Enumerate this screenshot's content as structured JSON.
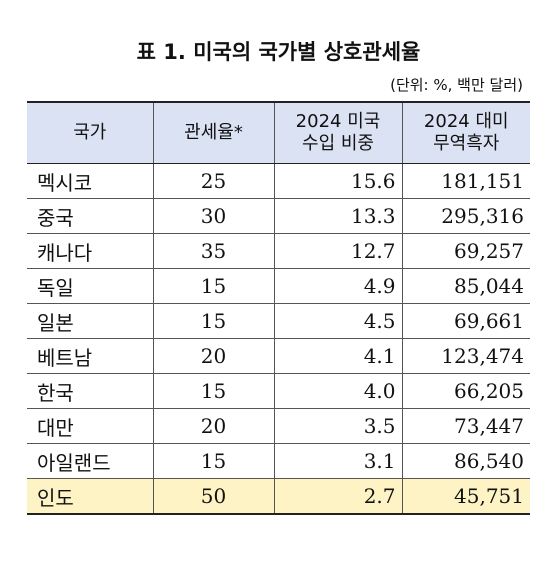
{
  "title": "표 1. 미국의 국가별 상호관세율",
  "unit": "(단위: %, 백만 달러)",
  "headers": {
    "country": "국가",
    "rate": "관세율*",
    "share_line1": "2024 미국",
    "share_line2": "수입 비중",
    "surplus_line1": "2024 대미",
    "surplus_line2": "무역흑자"
  },
  "rows": [
    {
      "country": "멕시코",
      "rate": "25",
      "share": "15.6",
      "surplus": "181,151"
    },
    {
      "country": "중국",
      "rate": "30",
      "share": "13.3",
      "surplus": "295,316"
    },
    {
      "country": "캐나다",
      "rate": "35",
      "share": "12.7",
      "surplus": "69,257"
    },
    {
      "country": "독일",
      "rate": "15",
      "share": "4.9",
      "surplus": "85,044"
    },
    {
      "country": "일본",
      "rate": "15",
      "share": "4.5",
      "surplus": "69,661"
    },
    {
      "country": "베트남",
      "rate": "20",
      "share": "4.1",
      "surplus": "123,474"
    },
    {
      "country": "한국",
      "rate": "15",
      "share": "4.0",
      "surplus": "66,205"
    },
    {
      "country": "대만",
      "rate": "20",
      "share": "3.5",
      "surplus": "73,447"
    },
    {
      "country": "아일랜드",
      "rate": "15",
      "share": "3.1",
      "surplus": "86,540"
    },
    {
      "country": "인도",
      "rate": "50",
      "share": "2.7",
      "surplus": "45,751"
    }
  ],
  "highlight_row_color": "#fdf3c4",
  "header_color": "#dbe2f3"
}
